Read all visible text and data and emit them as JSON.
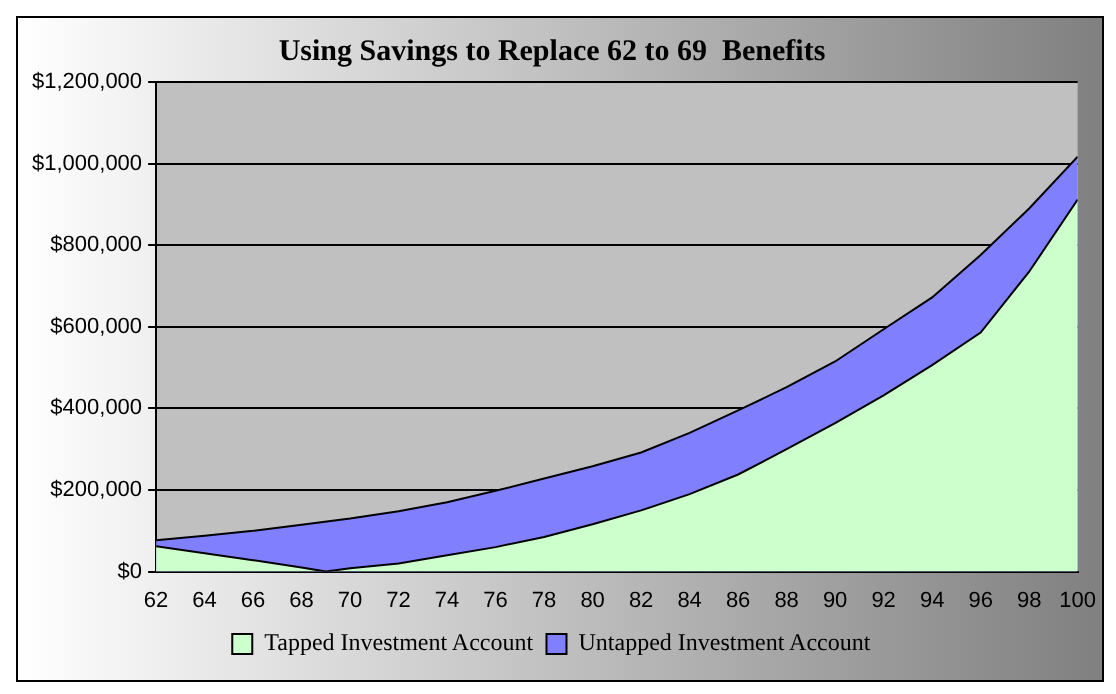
{
  "chart_data": {
    "type": "area",
    "title": "Using Savings to Replace 62 to 69  Benefits",
    "xlim": [
      62,
      100
    ],
    "xticks": [
      62,
      64,
      66,
      68,
      70,
      72,
      74,
      76,
      78,
      80,
      82,
      84,
      86,
      88,
      90,
      92,
      94,
      96,
      98,
      100
    ],
    "ylim": [
      0,
      1200000
    ],
    "yticks": [
      {
        "value": 0,
        "label": "$0"
      },
      {
        "value": 200000,
        "label": "$200,000"
      },
      {
        "value": 400000,
        "label": "$400,000"
      },
      {
        "value": 600000,
        "label": "$600,000"
      },
      {
        "value": 800000,
        "label": "$800,000"
      },
      {
        "value": 1000000,
        "label": "$1,000,000"
      },
      {
        "value": 1200000,
        "label": "$1,200,000"
      }
    ],
    "grid": "y",
    "legend": "bottom",
    "series": [
      {
        "name": "Untapped Investment Account",
        "color": "#8080ff",
        "x": [
          62,
          64,
          66,
          68,
          70,
          72,
          74,
          76,
          78,
          80,
          82,
          84,
          86,
          88,
          90,
          92,
          94,
          96,
          98,
          100
        ],
        "values": [
          77000,
          88000,
          100000,
          115000,
          130000,
          148000,
          170000,
          198000,
          228000,
          258000,
          292000,
          340000,
          395000,
          452000,
          515000,
          594000,
          672000,
          776000,
          890000,
          1017000
        ]
      },
      {
        "name": "Tapped Investment Account",
        "color": "#ccffcc",
        "x": [
          62,
          64,
          66,
          68,
          69,
          70,
          72,
          74,
          76,
          78,
          80,
          82,
          84,
          86,
          88,
          90,
          92,
          94,
          96,
          98,
          100
        ],
        "values": [
          62000,
          45000,
          28000,
          10000,
          0,
          8000,
          20000,
          40000,
          60000,
          85000,
          116000,
          150000,
          190000,
          238000,
          300000,
          364000,
          432000,
          506000,
          586000,
          735000,
          912000
        ]
      }
    ]
  }
}
